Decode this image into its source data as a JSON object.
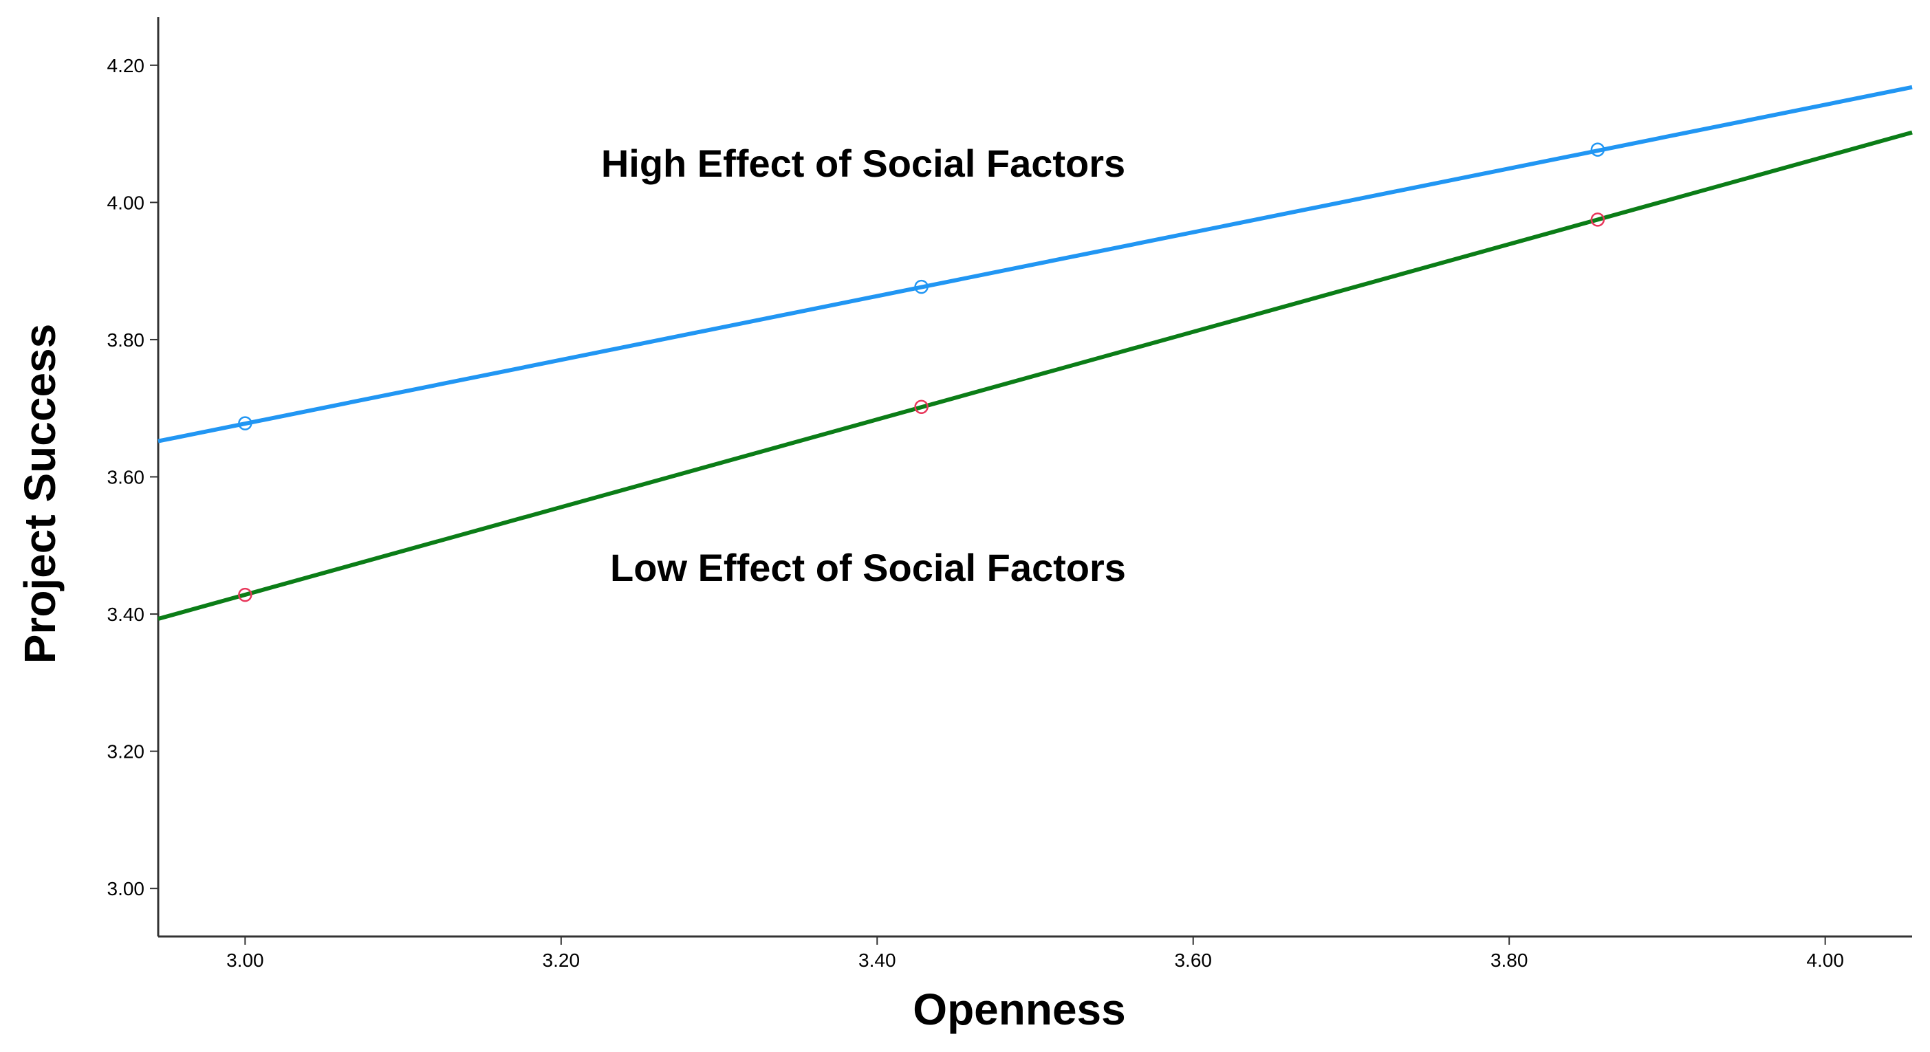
{
  "chart_data": {
    "type": "line",
    "title": "",
    "xlabel": "Openness",
    "ylabel": "Project Success",
    "xlim": [
      2.945,
      4.055
    ],
    "ylim": [
      2.93,
      4.27
    ],
    "x_ticks": [
      "3.00",
      "3.20",
      "3.40",
      "3.60",
      "3.80",
      "4.00"
    ],
    "y_ticks": [
      "3.00",
      "3.20",
      "3.40",
      "3.60",
      "3.80",
      "4.00",
      "4.20"
    ],
    "grid": false,
    "series": [
      {
        "name": "High Effect of Social Factors",
        "line_color": "#2196f3",
        "marker_color": "#2196f3",
        "fit_line": [
          [
            2.945,
            3.652
          ],
          [
            4.055,
            4.168
          ]
        ],
        "points": [
          [
            3.0,
            3.678
          ],
          [
            3.428,
            3.877
          ],
          [
            3.856,
            4.077
          ]
        ]
      },
      {
        "name": "Low Effect of Social Factors",
        "line_color": "#0b7d17",
        "marker_color": "#e8365a",
        "fit_line": [
          [
            2.945,
            3.393
          ],
          [
            4.055,
            4.102
          ]
        ],
        "points": [
          [
            3.0,
            3.428
          ],
          [
            3.428,
            3.702
          ],
          [
            3.856,
            3.975
          ]
        ]
      }
    ],
    "annotations": [
      "High Effect of Social Factors",
      "Low Effect of Social Factors"
    ]
  }
}
